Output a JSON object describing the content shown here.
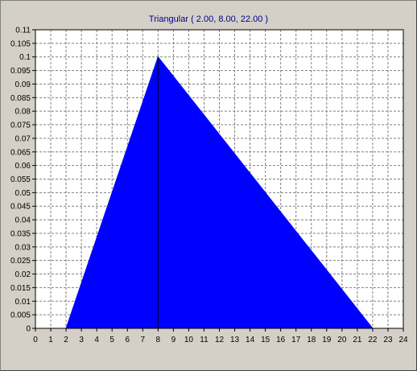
{
  "chart_data": {
    "type": "area",
    "title": "Triangular ( 2.00, 8.00, 22.00 )",
    "xlabel": "",
    "ylabel": "",
    "xlim": [
      0,
      24
    ],
    "ylim": [
      0,
      0.11
    ],
    "grid": true,
    "x_ticks": [
      "0",
      "1",
      "2",
      "3",
      "4",
      "5",
      "6",
      "7",
      "8",
      "9",
      "10",
      "11",
      "12",
      "13",
      "14",
      "15",
      "16",
      "17",
      "18",
      "19",
      "20",
      "21",
      "22",
      "23",
      "24"
    ],
    "y_ticks": [
      "0",
      "0.005",
      "0.01",
      "0.015",
      "0.02",
      "0.025",
      "0.03",
      "0.035",
      "0.04",
      "0.045",
      "0.05",
      "0.055",
      "0.06",
      "0.065",
      "0.07",
      "0.075",
      "0.08",
      "0.085",
      "0.09",
      "0.095",
      "0.1",
      "0.105",
      "0.11"
    ],
    "series": [
      {
        "points": [
          [
            0,
            0
          ],
          [
            2,
            0
          ],
          [
            8,
            0.1
          ],
          [
            22,
            0
          ],
          [
            24,
            0
          ]
        ]
      }
    ],
    "mode_line_x": 8,
    "colors": {
      "fill": "#0000ff",
      "line": "#000000",
      "title": "#00008b",
      "grid": "#808080"
    }
  }
}
